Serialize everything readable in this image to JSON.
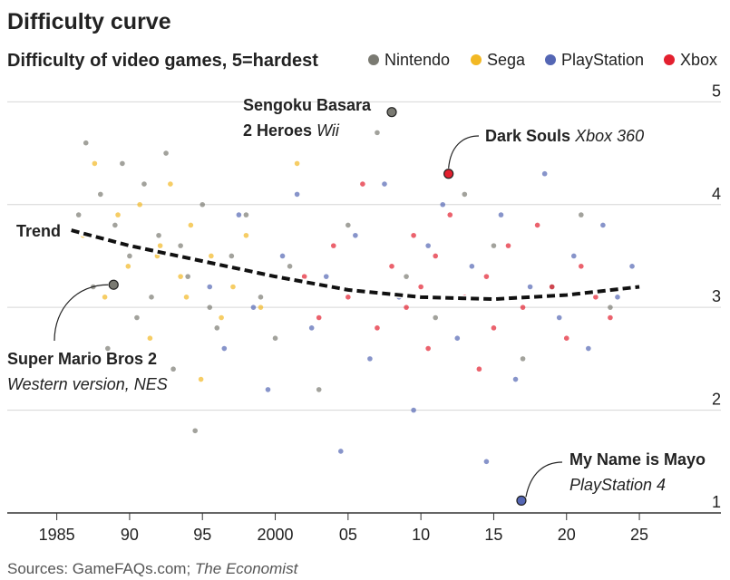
{
  "chart_data": {
    "type": "scatter",
    "title": "Difficulty curve",
    "subtitle": "Difficulty of video games, 5=hardest",
    "source": [
      "Sources: GameFAQs.com;",
      "The Economist"
    ],
    "xlim": [
      1981.6,
      2030.6
    ],
    "ylim": [
      1,
      5.1
    ],
    "xticks": [
      1985,
      {
        "value": 1990,
        "label": "90"
      },
      {
        "value": 1995,
        "label": "95"
      },
      2000,
      {
        "value": 2005,
        "label": "05"
      },
      {
        "value": 2010,
        "label": "10"
      },
      {
        "value": 2015,
        "label": "15"
      },
      {
        "value": 2020,
        "label": "20"
      },
      {
        "value": 2025,
        "label": "25"
      }
    ],
    "yticks": [
      1,
      2,
      3,
      4,
      5
    ],
    "grid": true,
    "series": [
      {
        "name": "Nintendo",
        "color": "#7a7a72",
        "x": [
          1986.5,
          1987,
          1987.5,
          1988,
          1988.5,
          1989,
          1989.5,
          1990,
          1990.5,
          1991,
          1991.5,
          1992,
          1992.5,
          1993,
          1993.5,
          1994,
          1994.5,
          1995,
          1995.5,
          1996,
          1997,
          1998,
          1999,
          2000,
          2001,
          2003,
          2005,
          2007,
          2009,
          2011,
          2013,
          2015,
          2017,
          2019,
          2021,
          2023
        ],
        "values": [
          3.9,
          4.6,
          3.2,
          4.1,
          2.6,
          3.8,
          4.4,
          3.5,
          2.9,
          4.2,
          3.1,
          3.7,
          4.5,
          2.4,
          3.6,
          3.3,
          1.8,
          4.0,
          3.0,
          2.8,
          3.5,
          3.9,
          3.1,
          2.7,
          3.4,
          2.2,
          3.8,
          4.7,
          3.3,
          2.9,
          4.1,
          3.6,
          2.5,
          3.2,
          3.9,
          3.0
        ]
      },
      {
        "name": "Sega",
        "color": "#f2b824",
        "x": [
          1986.8,
          1987.6,
          1988.3,
          1989.2,
          1989.9,
          1990.7,
          1991.4,
          1992.1,
          1992.8,
          1993.5,
          1994.2,
          1994.9,
          1995.6,
          1996.3,
          1997.1,
          1998,
          1999,
          2001.5,
          1993.9,
          1991.9
        ],
        "values": [
          3.7,
          4.4,
          3.1,
          3.9,
          3.4,
          4.0,
          2.7,
          3.6,
          4.2,
          3.3,
          3.8,
          2.3,
          3.5,
          2.9,
          3.2,
          3.7,
          3.0,
          4.4,
          3.1,
          3.5
        ]
      },
      {
        "name": "PlayStation",
        "color": "#5466b4",
        "x": [
          1995.5,
          1996.5,
          1997.5,
          1998.5,
          1999.5,
          2000.5,
          2001.5,
          2002.5,
          2003.5,
          2004.5,
          2005.5,
          2006.5,
          2007.5,
          2008.5,
          2009.5,
          2010.5,
          2011.5,
          2012.5,
          2013.5,
          2014.5,
          2015.5,
          2016.5,
          2017.5,
          2018.5,
          2019.5,
          2020.5,
          2021.5,
          2022.5,
          2023.5,
          2024.5
        ],
        "values": [
          3.2,
          2.6,
          3.9,
          3.0,
          2.2,
          3.5,
          4.1,
          2.8,
          3.3,
          1.6,
          3.7,
          2.5,
          4.2,
          3.1,
          2.0,
          3.6,
          4.0,
          2.7,
          3.4,
          1.5,
          3.9,
          2.3,
          3.2,
          4.3,
          2.9,
          3.5,
          2.6,
          3.8,
          3.1,
          3.4
        ]
      },
      {
        "name": "Xbox",
        "color": "#e3202f",
        "x": [
          2002,
          2003,
          2004,
          2005,
          2006,
          2007,
          2008,
          2009,
          2009.5,
          2010,
          2010.5,
          2011,
          2012,
          2013,
          2014,
          2014.5,
          2015,
          2016,
          2017,
          2018,
          2019,
          2020,
          2021,
          2022,
          2023
        ],
        "values": [
          3.3,
          2.9,
          3.6,
          3.1,
          4.2,
          2.8,
          3.4,
          3.0,
          3.7,
          3.2,
          2.6,
          3.5,
          3.9,
          3.1,
          2.4,
          3.3,
          2.8,
          3.6,
          3.0,
          3.8,
          3.2,
          2.7,
          3.4,
          3.1,
          2.9
        ]
      }
    ],
    "trend": {
      "label": "Trend",
      "x": [
        1986,
        1990,
        1995,
        2000,
        2005,
        2010,
        2015,
        2020,
        2025
      ],
      "values": [
        3.75,
        3.6,
        3.45,
        3.3,
        3.17,
        3.1,
        3.08,
        3.12,
        3.2
      ]
    },
    "annotations": [
      {
        "x": 2008,
        "y": 4.9,
        "color": "#7a7a72",
        "title": [
          "Sengoku Basara",
          "2 Heroes"
        ],
        "subtitle": "Wii"
      },
      {
        "x": 2011.9,
        "y": 4.3,
        "color": "#e3202f",
        "title": [
          "Dark Souls"
        ],
        "subtitle": "Xbox 360"
      },
      {
        "x": 1988.9,
        "y": 3.22,
        "color": "#7a7a72",
        "title": [
          "Super Mario Bros 2"
        ],
        "subtitle": "Western version, NES"
      },
      {
        "x": 2016.9,
        "y": 1.12,
        "color": "#5466b4",
        "title": [
          "My Name is Mayo"
        ],
        "subtitle": "PlayStation 4"
      }
    ]
  }
}
